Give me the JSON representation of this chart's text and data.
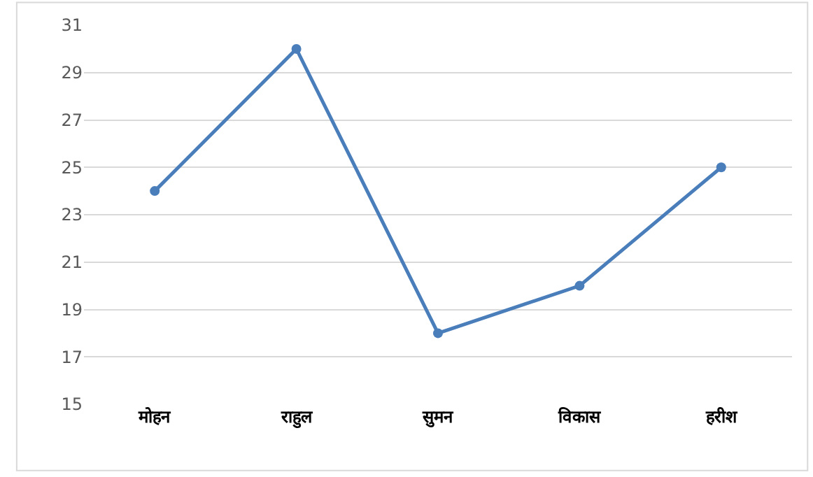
{
  "chart_data": {
    "type": "line",
    "categories": [
      "मोहन",
      "राहुल",
      "सुमन",
      "विकास",
      "हरीश"
    ],
    "series": [
      {
        "color": "#4a7ebb",
        "values": [
          24,
          30,
          18,
          20,
          25
        ]
      }
    ],
    "ylim": [
      15,
      31
    ],
    "yticks": [
      15,
      17,
      19,
      21,
      23,
      25,
      27,
      29,
      31
    ],
    "grid": "y",
    "marker": "circle",
    "line_style": "solid"
  }
}
